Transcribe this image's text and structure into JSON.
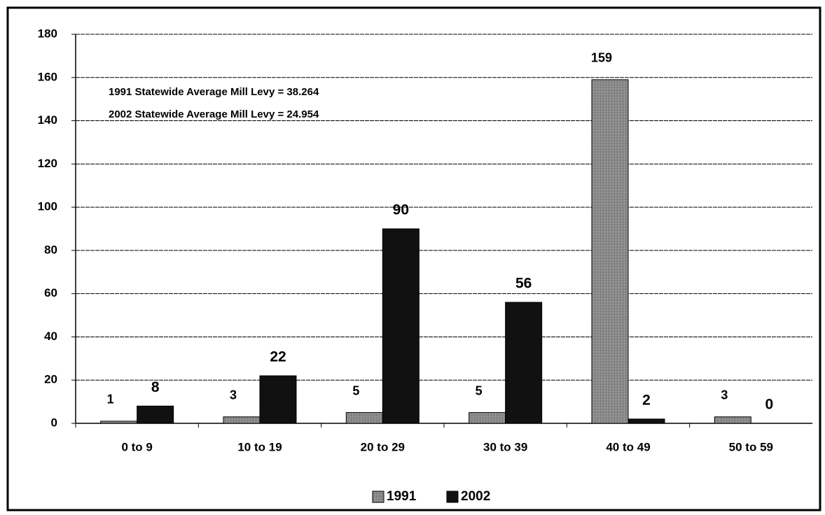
{
  "chart_data": {
    "type": "bar",
    "categories": [
      "0 to 9",
      "10 to 19",
      "20 to 29",
      "30 to 39",
      "40 to 49",
      "50 to 59"
    ],
    "series": [
      {
        "name": "1991",
        "color": "#8a8a8a",
        "values": [
          1,
          3,
          5,
          5,
          159,
          3
        ]
      },
      {
        "name": "2002",
        "color": "#111111",
        "values": [
          8,
          22,
          90,
          56,
          2,
          0
        ]
      }
    ],
    "annotations": [
      "1991 Statewide Average Mill Levy = 38.264",
      "2002 Statewide Average Mill Levy = 24.954"
    ],
    "ylim": [
      0,
      180
    ],
    "yticks": [
      0,
      20,
      40,
      60,
      80,
      100,
      120,
      140,
      160,
      180
    ],
    "grid": true,
    "legend": "bottom"
  }
}
